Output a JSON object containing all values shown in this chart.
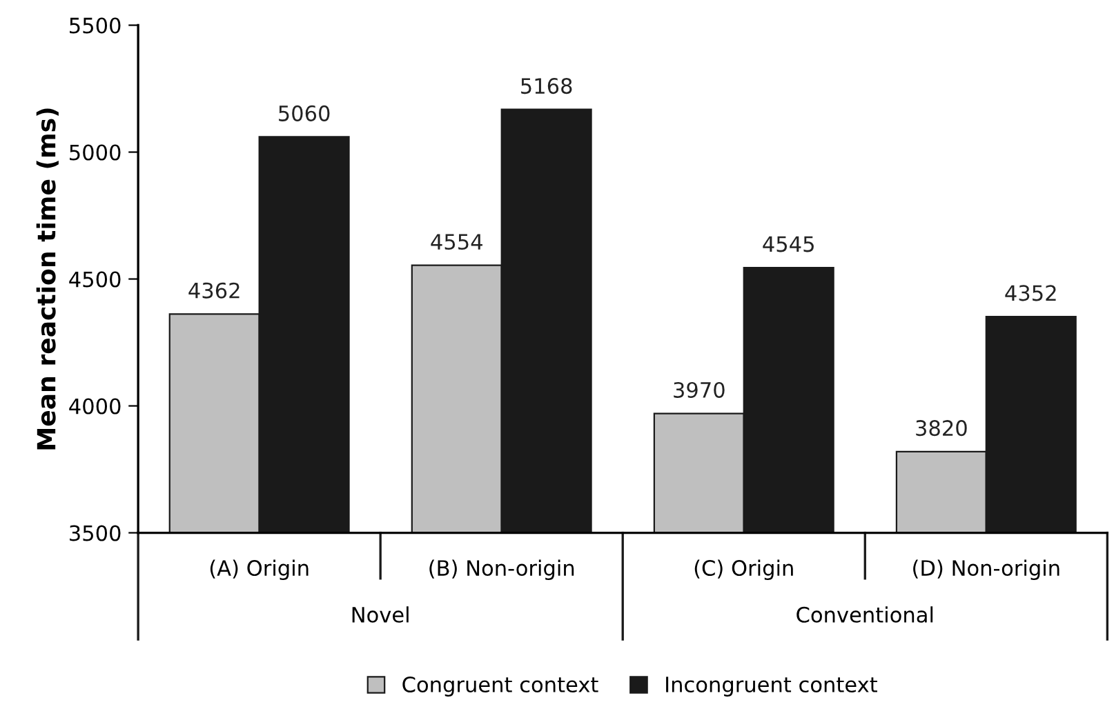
{
  "chart_data": {
    "type": "bar",
    "ylabel": "Mean reaction time (ms)",
    "categories": [
      "(A) Origin",
      "(B) Non-origin",
      "(C) Origin",
      "(D) Non-origin"
    ],
    "series": [
      {
        "name": "Congruent context",
        "color": "#bfbfbf",
        "values": [
          4362,
          4554,
          3970,
          3820
        ]
      },
      {
        "name": "Incongruent context",
        "color": "#1a1a1a",
        "values": [
          5060,
          5168,
          4545,
          4352
        ]
      }
    ],
    "ylim": [
      3500,
      5500
    ],
    "yticks": [
      3500,
      4000,
      4500,
      5000,
      5500
    ],
    "annotations": [
      "Novel",
      "Conventional"
    ],
    "data_labels": true,
    "grid": false,
    "legend": "bottom"
  }
}
